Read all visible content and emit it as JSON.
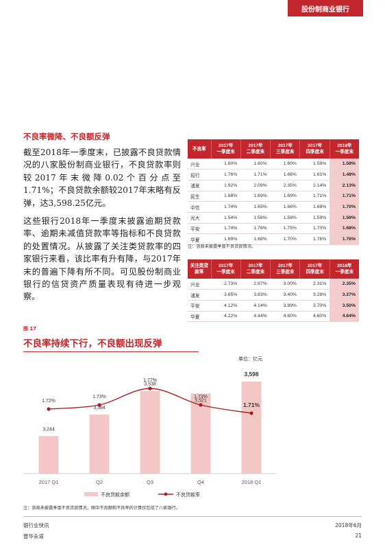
{
  "header": {
    "tag": "股份制商业银行"
  },
  "section_title": "不良率微降、不良额反弹",
  "paragraphs": [
    "截至2018年一季度末，已披露不良贷款情况的八家股份制商业银行，不良贷款率则较2017年末微降0.02个百分点至1.71%；不良贷款余额较2017年末略有反弹，达3,598.25亿元。",
    "这些银行2018年一季度末披露逾期贷款率、逾期未减值贷款率等指标和不良贷款的处置情况。从披露了关注类贷款率的四家银行来看，该比率有升有降，与2017年末的普遍下降有所不同。可见股份制商业银行的信贷资产质量表现有待进一步观察。"
  ],
  "table1": {
    "headers": [
      "不良率",
      "2017年\n一季度末",
      "2017年\n二季度末",
      "2017年\n三季度末",
      "2017年\n四季度末",
      "2018年\n一季度末"
    ],
    "rows": [
      [
        "兴业",
        "1.60%",
        "1.60%",
        "1.60%",
        "1.59%",
        "1.58%"
      ],
      [
        "招行",
        "1.76%",
        "1.71%",
        "1.66%",
        "1.61%",
        "1.48%"
      ],
      [
        "浦发",
        "1.92%",
        "2.09%",
        "2.35%",
        "2.14%",
        "2.13%"
      ],
      [
        "民生",
        "1.68%",
        "1.69%",
        "1.69%",
        "1.71%",
        "1.71%"
      ],
      [
        "中信",
        "1.74%",
        "1.65%",
        "1.66%",
        "1.68%",
        "1.70%"
      ],
      [
        "光大",
        "1.54%",
        "1.58%",
        "1.58%",
        "1.59%",
        "1.59%"
      ],
      [
        "平安",
        "1.74%",
        "1.76%",
        "1.75%",
        "1.70%",
        "1.68%"
      ],
      [
        "华夏",
        "1.69%",
        "1.68%",
        "1.70%",
        "1.76%",
        "1.76%"
      ]
    ],
    "note": "注：浙商未披露季度不良贷款情况。"
  },
  "table2": {
    "headers": [
      "关注类贷\n款率",
      "2017年\n一季度末",
      "2017年\n二季度末",
      "2017年\n三季度末",
      "2017年\n四季度末",
      "2018年\n一季度末"
    ],
    "rows": [
      [
        "兴业",
        "2.73%",
        "2.87%",
        "3.00%",
        "2.31%",
        "2.35%"
      ],
      [
        "浦发",
        "3.65%",
        "3.83%",
        "3.40%",
        "3.28%",
        "3.27%"
      ],
      [
        "平安",
        "4.12%",
        "4.14%",
        "3.89%",
        "3.70%",
        "3.50%"
      ],
      [
        "华夏",
        "4.22%",
        "4.44%",
        "4.60%",
        "4.60%",
        "4.64%"
      ]
    ]
  },
  "figure": {
    "number": "图 17",
    "title": "不良率持续下行，不良额出现反弹",
    "unit": "单位：亿元",
    "note": "注：浙商未披露季度不良贷款情况，图中不良额和不良率的计算仅包括了八家银行。"
  },
  "chart_data": {
    "type": "bar",
    "categories": [
      "2017 Q1",
      "Q2",
      "Q3",
      "Q4",
      "2018 Q1"
    ],
    "series": [
      {
        "name": "不良贷款余额",
        "type": "bar",
        "values": [
          3244,
          3384,
          3538,
          3521,
          3598
        ],
        "labels": [
          "3,244",
          "3,384",
          "3,538",
          "3,521",
          "3,598"
        ],
        "color": "#f4c7c7"
      },
      {
        "name": "不良贷款率",
        "type": "line",
        "values": [
          1.72,
          1.73,
          1.77,
          1.73,
          1.71
        ],
        "labels": [
          "1.72%",
          "1.73%",
          "1.77%",
          "1.73%",
          "1.71%"
        ],
        "color": "#a81e24"
      }
    ],
    "legend_position": "bottom",
    "grid": false
  },
  "footer": {
    "publication": "银行业快讯",
    "firm": "普华永道",
    "date": "2018年6月",
    "page": "21"
  }
}
